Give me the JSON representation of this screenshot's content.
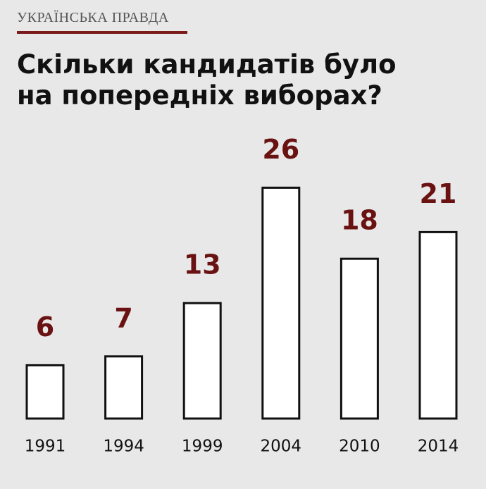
{
  "brand": "УКРАЇНСЬКА ПРАВДА",
  "chart_data": {
    "type": "bar",
    "title": "Скільки кандидатів було на попередніх виборах?",
    "categories": [
      "1991",
      "1994",
      "1999",
      "2004",
      "2010",
      "2014"
    ],
    "values": [
      6,
      7,
      13,
      26,
      18,
      21
    ],
    "color": "#ffffff",
    "label_color": "#6a1212"
  }
}
